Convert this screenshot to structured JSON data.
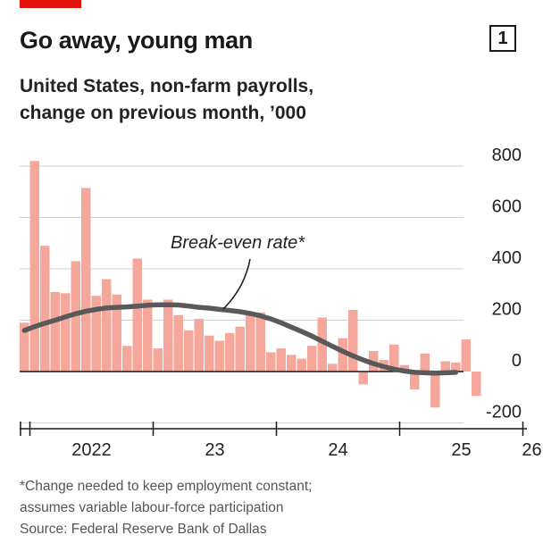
{
  "header": {
    "title": "Go away, young man",
    "figure_number": "1"
  },
  "subtitle_lines": [
    "United States, non-farm payrolls,",
    "change on previous month, ’000"
  ],
  "footnote_lines": [
    "*Change needed to keep employment constant;",
    "assumes variable labour-force participation",
    "Source: Federal Reserve Bank of Dallas"
  ],
  "colors": {
    "accent": "#e3120b",
    "bars": "#f4a79a",
    "line": "#595959",
    "grid": "#d0d0d0",
    "axis": "#1a1a1a"
  },
  "chart_data": {
    "type": "bar",
    "title": "Go away, young man",
    "subtitle": "United States, non-farm payrolls, change on previous month, ’000",
    "x_start": "2021-12",
    "ylim": [
      -250,
      850
    ],
    "yticks": [
      {
        "value": 800,
        "label": "800"
      },
      {
        "value": 600,
        "label": "600"
      },
      {
        "value": 400,
        "label": "400"
      },
      {
        "value": 200,
        "label": "200"
      },
      {
        "value": 0,
        "label": "0"
      },
      {
        "value": -200,
        "label": "-200"
      }
    ],
    "xticks": [
      {
        "label": "2022",
        "month": "2022-01",
        "labelled": true
      },
      {
        "label": "23",
        "month": "2023-01",
        "labelled": true
      },
      {
        "label": "24",
        "month": "2024-01",
        "labelled": true
      },
      {
        "label": "25",
        "month": "2025-01",
        "labelled": true
      },
      {
        "label": "26",
        "month": "2026-01",
        "labelled": true
      },
      {
        "label": "",
        "month": "2021-01",
        "labelled": false
      }
    ],
    "grid": true,
    "y_axis_position": "right",
    "series": [
      {
        "name": "Non-farm payrolls, monthly change",
        "type": "bar",
        "values": [
          190,
          820,
          490,
          310,
          305,
          430,
          715,
          295,
          360,
          300,
          100,
          440,
          280,
          90,
          280,
          220,
          160,
          205,
          140,
          120,
          150,
          175,
          225,
          230,
          75,
          90,
          65,
          50,
          100,
          210,
          30,
          130,
          240,
          -50,
          80,
          45,
          105,
          25,
          -70,
          70,
          -140,
          40,
          35,
          125,
          -95
        ]
      },
      {
        "name": "Break-even rate*",
        "type": "line",
        "values": [
          160,
          175,
          188,
          200,
          213,
          225,
          235,
          242,
          248,
          250,
          252,
          255,
          258,
          260,
          260,
          259,
          255,
          250,
          247,
          242,
          238,
          233,
          226,
          217,
          205,
          190,
          173,
          156,
          138,
          118,
          98,
          79,
          61,
          45,
          31,
          19,
          9,
          2,
          -3,
          -5,
          -6,
          -5,
          -3
        ]
      }
    ],
    "annotations": [
      {
        "text": "Break-even rate*",
        "points_to": "Break-even rate*"
      }
    ]
  }
}
